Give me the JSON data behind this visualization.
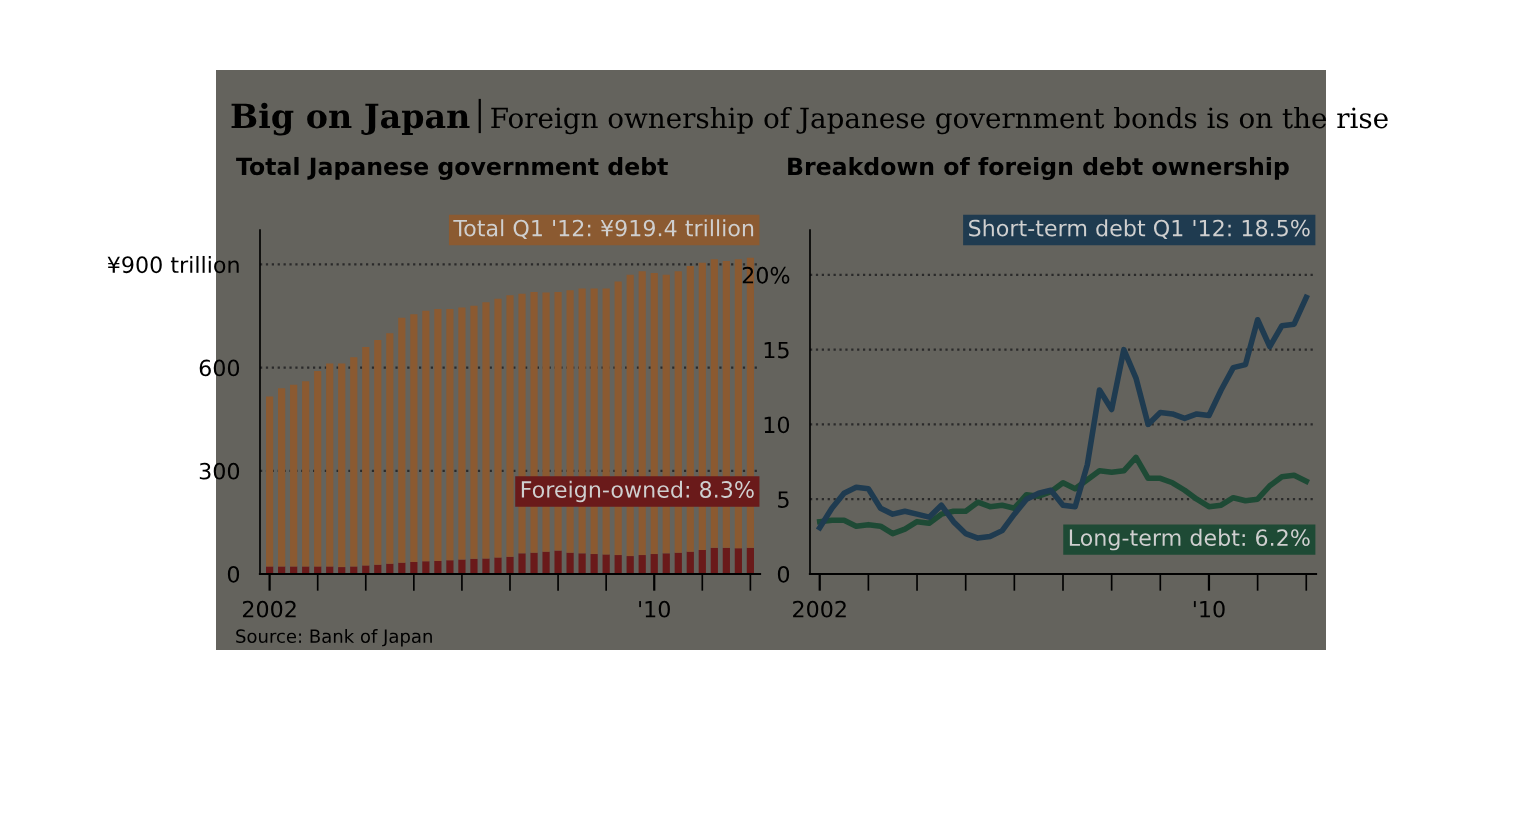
{
  "chart_data": [
    {
      "type": "other",
      "title": "Big on Japan",
      "subtitle": "Foreign ownership of Japanese government bonds is on the rise"
    },
    {
      "type": "bar",
      "title": "Total Japanese government debt",
      "stacked": true,
      "categories": [
        "2002",
        null,
        null,
        null,
        null,
        null,
        null,
        null,
        null,
        null,
        null,
        null,
        null,
        null,
        null,
        null,
        null,
        null,
        null,
        null,
        null,
        null,
        null,
        null,
        null,
        null,
        null,
        null,
        null,
        null,
        null,
        null,
        "'10",
        null,
        null,
        null,
        null,
        null,
        null,
        null,
        null
      ],
      "series": [
        {
          "color": "#6a1a1a",
          "values": [
            22,
            22,
            22,
            22,
            22,
            22,
            20,
            22,
            25,
            27,
            30,
            33,
            35,
            37,
            38,
            40,
            42,
            44,
            45,
            48,
            50,
            60,
            62,
            65,
            68,
            62,
            60,
            58,
            57,
            55,
            52,
            55,
            58,
            60,
            62,
            65,
            70,
            76,
            76,
            75,
            76
          ]
        },
        {
          "color": "#8b5a31",
          "values": [
            494,
            518,
            528,
            538,
            568,
            590,
            592,
            608,
            635,
            653,
            670,
            712,
            720,
            728,
            732,
            730,
            733,
            736,
            745,
            752,
            760,
            755,
            758,
            753,
            752,
            763,
            770,
            772,
            773,
            795,
            818,
            825,
            817,
            810,
            818,
            830,
            835,
            839,
            834,
            840,
            843
          ]
        }
      ],
      "ylim": [
        0,
        1000
      ],
      "yticks": [
        0,
        300,
        600,
        {
          "value": 900,
          "label": "¥900 trillion"
        }
      ],
      "grid": "y",
      "annotations": [
        "Total Q1 '12: ¥919.4 trillion",
        "Foreign-owned: 8.3%",
        "Source: Bank of Japan"
      ]
    },
    {
      "type": "line",
      "title": "Breakdown of foreign debt ownership",
      "categories": [
        "2002",
        null,
        null,
        null,
        null,
        null,
        null,
        null,
        null,
        null,
        null,
        null,
        null,
        null,
        null,
        null,
        null,
        null,
        null,
        null,
        null,
        null,
        null,
        null,
        null,
        null,
        null,
        null,
        null,
        null,
        null,
        null,
        "'10",
        null,
        null,
        null,
        null,
        null,
        null,
        null,
        null
      ],
      "series": [
        {
          "color": "#1e4a35",
          "values": [
            3.5,
            3.6,
            3.6,
            3.2,
            3.3,
            3.2,
            2.7,
            3.0,
            3.5,
            3.4,
            4.0,
            4.2,
            4.2,
            4.8,
            4.5,
            4.6,
            4.4,
            5.3,
            5.2,
            5.5,
            6.1,
            5.7,
            6.3,
            6.9,
            6.8,
            6.9,
            7.8,
            6.4,
            6.4,
            6.1,
            5.6,
            5.0,
            4.5,
            4.6,
            5.1,
            4.9,
            5.0,
            5.9,
            6.5,
            6.6,
            6.2
          ]
        },
        {
          "color": "#1f3b50",
          "values": [
            3.1,
            4.4,
            5.4,
            5.8,
            5.7,
            4.4,
            4.0,
            4.2,
            4.0,
            3.8,
            4.6,
            3.5,
            2.7,
            2.4,
            2.5,
            2.9,
            4.0,
            5.0,
            5.4,
            5.6,
            4.6,
            4.5,
            7.3,
            12.3,
            11.0,
            15.0,
            13.1,
            10.0,
            10.8,
            10.7,
            10.4,
            10.7,
            10.6,
            12.3,
            13.8,
            14.0,
            17.0,
            15.2,
            16.6,
            16.7,
            18.5
          ]
        }
      ],
      "ylim": [
        0,
        23
      ],
      "yticks": [
        0,
        5,
        10,
        15,
        {
          "value": 20,
          "label": "20%"
        }
      ],
      "grid": "y",
      "annotations": [
        "Short-term debt Q1 '12: 18.5%",
        "Long-term debt: 6.2%"
      ]
    }
  ]
}
